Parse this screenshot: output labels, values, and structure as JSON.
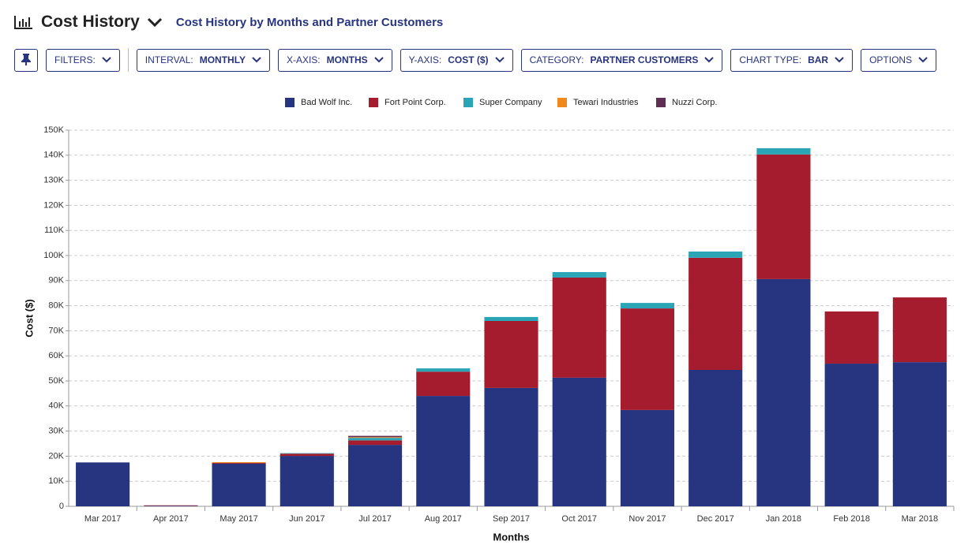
{
  "header": {
    "title": "Cost History",
    "subtitle": "Cost History by Months and Partner Customers"
  },
  "toolbar": {
    "filters": "FILTERS:",
    "interval": {
      "label": "INTERVAL:",
      "value": "MONTHLY"
    },
    "x_axis": {
      "label": "X-AXIS:",
      "value": "MONTHS"
    },
    "y_axis": {
      "label": "Y-AXIS:",
      "value": "COST ($)"
    },
    "category": {
      "label": "CATEGORY:",
      "value": "PARTNER CUSTOMERS"
    },
    "chart_type": {
      "label": "CHART TYPE:",
      "value": "BAR"
    },
    "options": "OPTIONS"
  },
  "chart_data": {
    "type": "stacked_bar",
    "x_label": "Months",
    "y_label": "Cost ($)",
    "categories": [
      "Mar 2017",
      "Apr 2017",
      "May 2017",
      "Jun 2017",
      "Jul 2017",
      "Aug 2017",
      "Sep 2017",
      "Oct 2017",
      "Nov 2017",
      "Dec 2017",
      "Jan 2018",
      "Feb 2018",
      "Mar 2018"
    ],
    "series": [
      {
        "name": "Bad Wolf Inc.",
        "color": "#27347f",
        "values": [
          17500,
          200,
          17000,
          20100,
          24500,
          44000,
          47200,
          51300,
          38400,
          54400,
          90600,
          56900,
          57500
        ]
      },
      {
        "name": "Fort Point Corp.",
        "color": "#a51c2e",
        "values": [
          0,
          200,
          300,
          900,
          1800,
          9700,
          26700,
          39900,
          40500,
          44700,
          49700,
          20800,
          25800
        ]
      },
      {
        "name": "Super Company",
        "color": "#2aa5b5",
        "values": [
          0,
          0,
          0,
          200,
          1000,
          1300,
          1600,
          2200,
          2200,
          2500,
          2500,
          0,
          0
        ]
      },
      {
        "name": "Tewari Industries",
        "color": "#f0891e",
        "values": [
          0,
          0,
          300,
          0,
          300,
          0,
          0,
          0,
          0,
          0,
          0,
          0,
          0
        ]
      },
      {
        "name": "Nuzzi Corp.",
        "color": "#5e2f52",
        "values": [
          0,
          0,
          0,
          0,
          500,
          0,
          0,
          0,
          0,
          0,
          0,
          0,
          0
        ]
      }
    ],
    "ylim": [
      0,
      150000
    ],
    "yticks": [
      0,
      {
        "value": 10000,
        "label": "10K"
      },
      {
        "value": 20000,
        "label": "20K"
      },
      {
        "value": 30000,
        "label": "30K"
      },
      {
        "value": 40000,
        "label": "40K"
      },
      {
        "value": 50000,
        "label": "50K"
      },
      {
        "value": 60000,
        "label": "60K"
      },
      {
        "value": 70000,
        "label": "70K"
      },
      {
        "value": 80000,
        "label": "80K"
      },
      {
        "value": 90000,
        "label": "90K"
      },
      {
        "value": 100000,
        "label": "100K"
      },
      {
        "value": 110000,
        "label": "110K"
      },
      {
        "value": 120000,
        "label": "120K"
      },
      {
        "value": 130000,
        "label": "130K"
      },
      {
        "value": 140000,
        "label": "140K"
      },
      {
        "value": 150000,
        "label": "150K"
      }
    ],
    "grid": true,
    "legend": "top"
  }
}
